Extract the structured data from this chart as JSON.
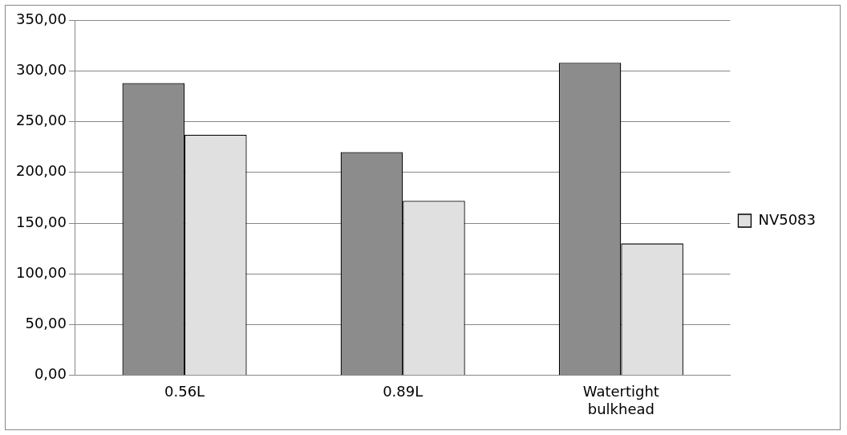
{
  "chart_data": {
    "type": "bar",
    "categories": [
      "0.56L",
      "0.89L",
      "Watertight bulkhead"
    ],
    "series": [
      {
        "color": "#8c8c8c",
        "values": [
          288,
          220,
          308
        ]
      },
      {
        "name": "NV5083",
        "color": "#e0e0e0",
        "values": [
          237,
          172,
          130
        ]
      }
    ],
    "ylim": [
      0,
      350
    ],
    "yticks": [
      {
        "value": 0,
        "label": "0,00"
      },
      {
        "value": 50,
        "label": "50,00"
      },
      {
        "value": 100,
        "label": "100,00"
      },
      {
        "value": 150,
        "label": "150,00"
      },
      {
        "value": 200,
        "label": "200,00"
      },
      {
        "value": 250,
        "label": "250,00"
      },
      {
        "value": 300,
        "label": "300,00"
      },
      {
        "value": 350,
        "label": "350,00"
      }
    ],
    "grid": "y",
    "legend": "right"
  }
}
